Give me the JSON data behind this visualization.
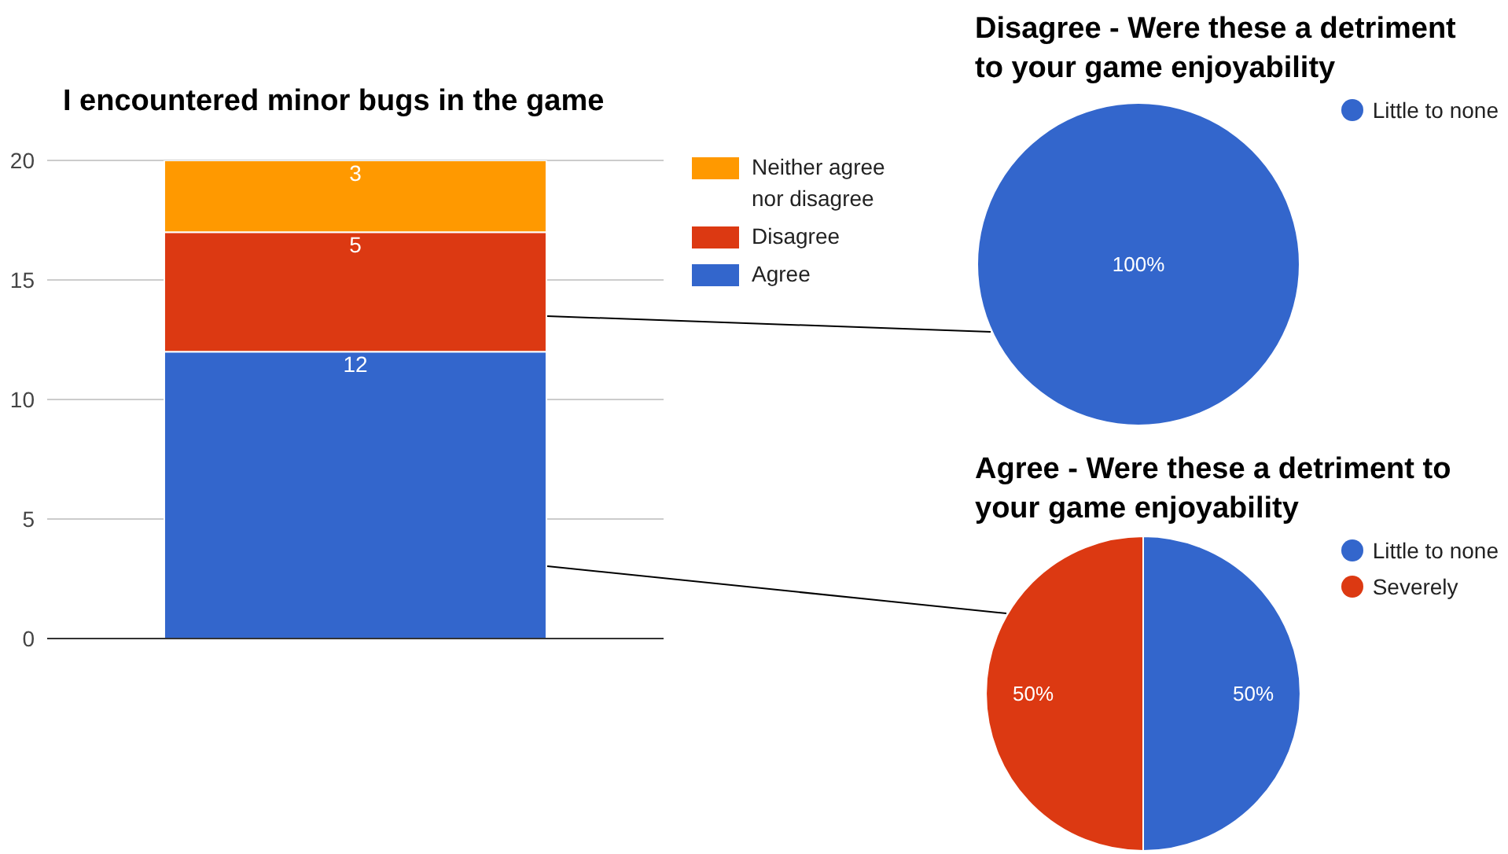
{
  "chart_data": [
    {
      "type": "bar",
      "title": "I encountered minor bugs in the game",
      "categories": [
        null
      ],
      "stacked": true,
      "series": [
        {
          "name": "Agree",
          "color": "#3366cc",
          "values": [
            12
          ]
        },
        {
          "name": "Disagree",
          "color": "#dc3912",
          "values": [
            5
          ]
        },
        {
          "name": "Neither agree nor disagree",
          "color": "#ff9900",
          "values": [
            3
          ]
        }
      ],
      "ylim": [
        0,
        20
      ],
      "yticks": [
        0,
        5,
        10,
        15,
        20
      ],
      "grid": "y",
      "data_labels": true,
      "legend": "right"
    },
    {
      "type": "pie",
      "title": "Disagree - Were these a detriment to your game enjoyability",
      "categories": [
        "Little to none"
      ],
      "values": [
        100
      ],
      "colors": [
        "#3366cc"
      ],
      "value_labels": [
        "100%"
      ],
      "legend": "top right"
    },
    {
      "type": "pie",
      "title": "Agree - Were these a detriment to your game enjoyability",
      "categories": [
        "Little to none",
        "Severely"
      ],
      "values": [
        50,
        50
      ],
      "colors": [
        "#3366cc",
        "#dc3912"
      ],
      "value_labels": [
        "50%",
        "50%"
      ],
      "legend": "top right"
    }
  ]
}
